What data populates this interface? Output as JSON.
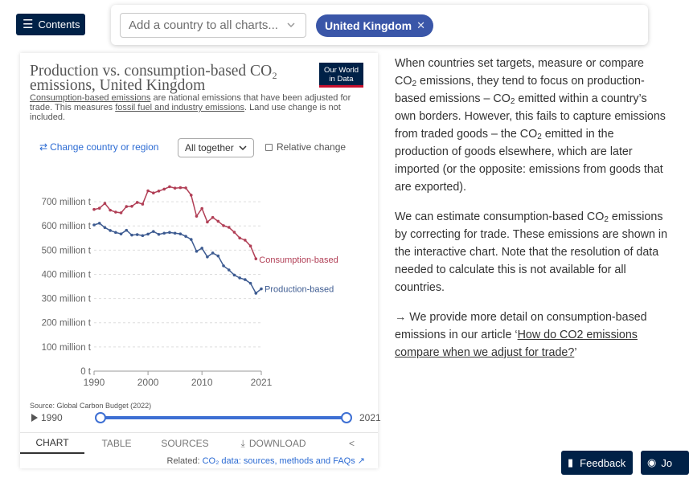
{
  "toolbar": {
    "contents_label": "Contents",
    "search_placeholder": "Add a country to all charts...",
    "selected_country": "United Kingdom"
  },
  "chart_card": {
    "title": "Production vs. consumption-based CO₂ emissions, United Kingdom",
    "logo_line1": "Our World",
    "logo_line2": "in Data",
    "subtitle_link1": "Consumption-based emissions",
    "subtitle_text1": " are national emissions that have been adjusted for trade. This measures ",
    "subtitle_link2": "fossil fuel and industry emissions",
    "subtitle_text2": ". Land use change is not included.",
    "change_country_label": "Change country or region",
    "mode_label": "All together",
    "relative_change_label": "Relative change",
    "source_line": "Source: Global Carbon Budget (2022)",
    "timeline_start": "1990",
    "timeline_end": "2021",
    "tabs": [
      "CHART",
      "TABLE",
      "SOURCES",
      "DOWNLOAD"
    ],
    "related_prefix": "Related: ",
    "related_link": "CO₂ data: sources, methods and FAQs"
  },
  "chart_data": {
    "type": "line",
    "title": "Production vs. consumption-based CO₂ emissions, United Kingdom",
    "x": [
      1990,
      1991,
      1992,
      1993,
      1994,
      1995,
      1996,
      1997,
      1998,
      1999,
      2000,
      2001,
      2002,
      2003,
      2004,
      2005,
      2006,
      2007,
      2008,
      2009,
      2010,
      2011,
      2012,
      2013,
      2014,
      2015,
      2016,
      2017,
      2018,
      2019,
      2020,
      2021
    ],
    "xlim": [
      1990,
      2021
    ],
    "xticks": [
      "1990",
      "2000",
      "2010",
      "2021"
    ],
    "ylim": [
      0,
      750
    ],
    "yticks": [
      "0 t",
      "100 million t",
      "200 million t",
      "300 million t",
      "400 million t",
      "500 million t",
      "600 million t",
      "700 million t"
    ],
    "series": [
      {
        "name": "Consumption-based",
        "color": "#b13f56",
        "values": [
          668,
          673,
          693,
          665,
          657,
          654,
          680,
          681,
          697,
          690,
          745,
          736,
          744,
          752,
          762,
          756,
          758,
          757,
          727,
          640,
          672,
          616,
          635,
          619,
          601,
          594,
          574,
          550,
          541,
          517,
          464,
          null
        ]
      },
      {
        "name": "Production-based",
        "color": "#3d5b91",
        "values": [
          604,
          611,
          593,
          581,
          573,
          567,
          582,
          562,
          564,
          560,
          566,
          577,
          565,
          570,
          573,
          570,
          567,
          557,
          544,
          495,
          508,
          472,
          488,
          476,
          435,
          418,
          397,
          385,
          378,
          363,
          322,
          340
        ]
      }
    ]
  },
  "article": {
    "p1a": "When countries set targets, measure or compare CO",
    "p1b": " emissions, they tend to focus on production-based emissions – CO",
    "p1c": " emitted within a country’s own borders. However, this fails to capture emissions from traded goods – the CO",
    "p1d": " emitted in the production of goods elsewhere, which are later imported (or the opposite: emissions from goods that are exported).",
    "p2a": "We can estimate consumption-based CO",
    "p2b": " emissions by correcting for trade. These emissions are shown in the interactive chart. Note that the resolution of data needed to calculate this is not available for all countries.",
    "p3a": "→ We provide more detail on consumption-based emissions in our article ‘",
    "p3link": "How do CO2 emissions compare when we adjust for trade?",
    "p3b": "’",
    "sub2": "2"
  },
  "footer": {
    "feedback_label": "Feedback",
    "join_label": "Jo"
  }
}
